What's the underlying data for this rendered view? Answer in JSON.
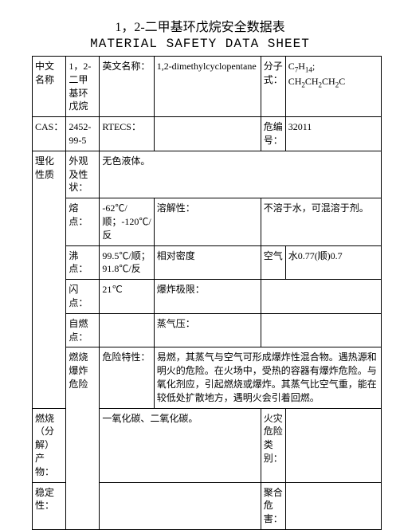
{
  "title_cn": "1，2-二甲基环戊烷安全数据表",
  "title_en": "MATERIAL SAFETY DATA SHEET",
  "labels": {
    "name_cn_label": "中文名称",
    "name_cn_value": "1，2-二甲基环戊烷",
    "name_en_label": "英文名称：",
    "name_en_value": "1,2-dimethylcyclopentane",
    "formula_label": "分子式：",
    "formula_value": "C₇H₁₄; CH₂CH₂CH₂C",
    "cas_label": "CAS：",
    "cas_value": "2452-99-5",
    "rtecs_label": "RTECS：",
    "rtecs_value": "",
    "hazard_code_label": "危编号：",
    "hazard_code_value": "32011",
    "phys_chem_label": "理化性质",
    "appearance_label": "外观及性状：",
    "appearance_value": "无色液体。",
    "mp_label": "熔点：",
    "mp_value": "-62℃/顺；-120℃/反",
    "solubility_label": "溶解性：",
    "solubility_value": "不溶于水，可混溶于剂。",
    "bp_label": "沸点：",
    "bp_value": "99.5℃/顺；91.8℃/反",
    "density_label": "相对密度",
    "density_ref": "空气",
    "density_value": "水0.77(顺)0.7",
    "flash_label": "闪点：",
    "flash_value": "21℃",
    "explosion_label": "爆炸极限：",
    "autoign_label": "自燃点：",
    "vapor_label": "蒸气压：",
    "fire_hazard_label": "燃烧爆炸危险",
    "hazard_char_label": "危险特性：",
    "hazard_char_value": "易燃，其蒸气与空气可形成爆炸性混合物。遇热源和明火的危险。在火场中，受热的容器有爆炸危险。与氧化剂应，引起燃烧或爆炸。其蒸气比空气重，能在较低处扩散地方，遇明火会引着回燃。",
    "combustion_label": "燃烧（分解）产物：",
    "combustion_value": "一氧化碳、二氧化碳。",
    "fire_class_label": "火灾危险类别：",
    "stability_label": "稳定性：",
    "polymer_label": "聚合危害："
  }
}
